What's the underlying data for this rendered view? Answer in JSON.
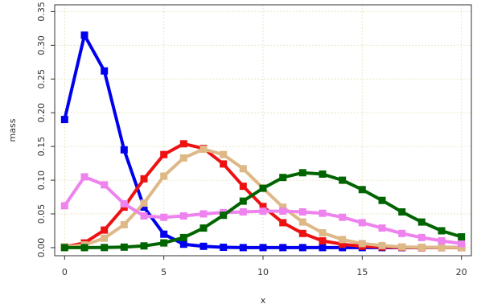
{
  "chart_data": {
    "type": "line",
    "title": "",
    "xlabel": "x",
    "ylabel": "mass",
    "xlim": [
      -0.5,
      20.5
    ],
    "ylim": [
      -0.012,
      0.36
    ],
    "x_ticks": [
      0,
      5,
      10,
      15,
      20
    ],
    "y_ticks": [
      0.0,
      0.05,
      0.1,
      0.15,
      0.2,
      0.25,
      0.3,
      0.35
    ],
    "y_tick_labels": [
      "0.00",
      "0.05",
      "0.10",
      "0.15",
      "0.20",
      "0.25",
      "0.30",
      "0.35"
    ],
    "grid": true,
    "grid_color": "#e8e6c6",
    "x": [
      0,
      1,
      2,
      3,
      4,
      5,
      6,
      7,
      8,
      9,
      10,
      11,
      12,
      13,
      14,
      15,
      16,
      17,
      18,
      19,
      20
    ],
    "series": [
      {
        "color": "#0000ee",
        "values": [
          0.19,
          0.315,
          0.262,
          0.145,
          0.06,
          0.02,
          0.005,
          0.002,
          0.0005,
          0.0001,
          0,
          0,
          0,
          0,
          0,
          0,
          0,
          0,
          0,
          0,
          0
        ]
      },
      {
        "color": "#ee1111",
        "values": [
          0.001,
          0.007,
          0.026,
          0.06,
          0.102,
          0.138,
          0.154,
          0.147,
          0.124,
          0.091,
          0.061,
          0.037,
          0.021,
          0.01,
          0.005,
          0.002,
          0.001,
          0.0004,
          0.0001,
          0,
          0
        ]
      },
      {
        "color": "#deb887",
        "values": [
          0.001,
          0.004,
          0.014,
          0.034,
          0.066,
          0.106,
          0.133,
          0.146,
          0.138,
          0.117,
          0.088,
          0.06,
          0.038,
          0.022,
          0.012,
          0.006,
          0.003,
          0.001,
          0.0005,
          0.0002,
          0.0001
        ]
      },
      {
        "color": "#ee82ee",
        "values": [
          0.062,
          0.105,
          0.093,
          0.065,
          0.047,
          0.045,
          0.047,
          0.05,
          0.052,
          0.053,
          0.054,
          0.054,
          0.053,
          0.051,
          0.045,
          0.037,
          0.029,
          0.021,
          0.015,
          0.01,
          0.006
        ]
      },
      {
        "color": "#006400",
        "values": [
          0.0,
          0.0,
          0.0002,
          0.0008,
          0.0025,
          0.007,
          0.015,
          0.029,
          0.048,
          0.069,
          0.088,
          0.104,
          0.111,
          0.109,
          0.1,
          0.086,
          0.07,
          0.053,
          0.038,
          0.025,
          0.016
        ]
      }
    ]
  }
}
